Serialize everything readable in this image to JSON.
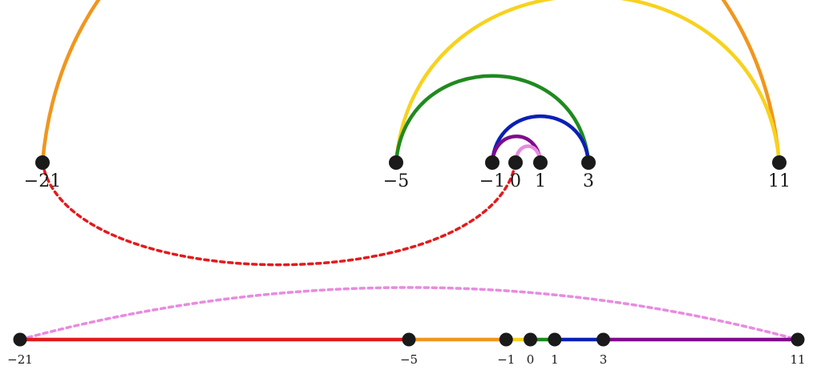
{
  "points": [
    {
      "value": -21,
      "label": "−21"
    },
    {
      "value": -5,
      "label": "−5"
    },
    {
      "value": -1,
      "label": "−1"
    },
    {
      "value": 0,
      "label": "0"
    },
    {
      "value": 1,
      "label": "1"
    },
    {
      "value": 3,
      "label": "3"
    },
    {
      "value": 11,
      "label": "11"
    }
  ],
  "colors": {
    "red": "#e31a1c",
    "orange": "#f0961e",
    "yellow": "#f7d21e",
    "green": "#1f8a1f",
    "blue": "#0b1fb5",
    "purple": "#800a8c",
    "pink": "#e88be0",
    "dot": "#1a1a1a"
  },
  "top_diagram": {
    "arcs": [
      {
        "from": -21,
        "to": 11,
        "color": "orange",
        "style": "solid",
        "side": "above"
      },
      {
        "from": -5,
        "to": 11,
        "color": "yellow",
        "style": "solid",
        "side": "above"
      },
      {
        "from": -5,
        "to": 3,
        "color": "green",
        "style": "solid",
        "side": "above"
      },
      {
        "from": -1,
        "to": 3,
        "color": "blue",
        "style": "solid",
        "side": "above"
      },
      {
        "from": -1,
        "to": 1,
        "color": "purple",
        "style": "solid",
        "side": "above"
      },
      {
        "from": 0,
        "to": 1,
        "color": "pink",
        "style": "solid",
        "side": "above"
      },
      {
        "from": -21,
        "to": 0,
        "color": "red",
        "style": "dotted",
        "side": "below"
      }
    ]
  },
  "bottom_diagram": {
    "segments": [
      {
        "from": -21,
        "to": -5,
        "color": "red"
      },
      {
        "from": -5,
        "to": -1,
        "color": "orange"
      },
      {
        "from": -1,
        "to": 0,
        "color": "yellow"
      },
      {
        "from": 0,
        "to": 1,
        "color": "green"
      },
      {
        "from": 1,
        "to": 3,
        "color": "blue"
      },
      {
        "from": 3,
        "to": 11,
        "color": "purple"
      }
    ],
    "arcs": [
      {
        "from": -21,
        "to": 11,
        "color": "pink",
        "style": "dotted",
        "side": "above"
      }
    ]
  }
}
